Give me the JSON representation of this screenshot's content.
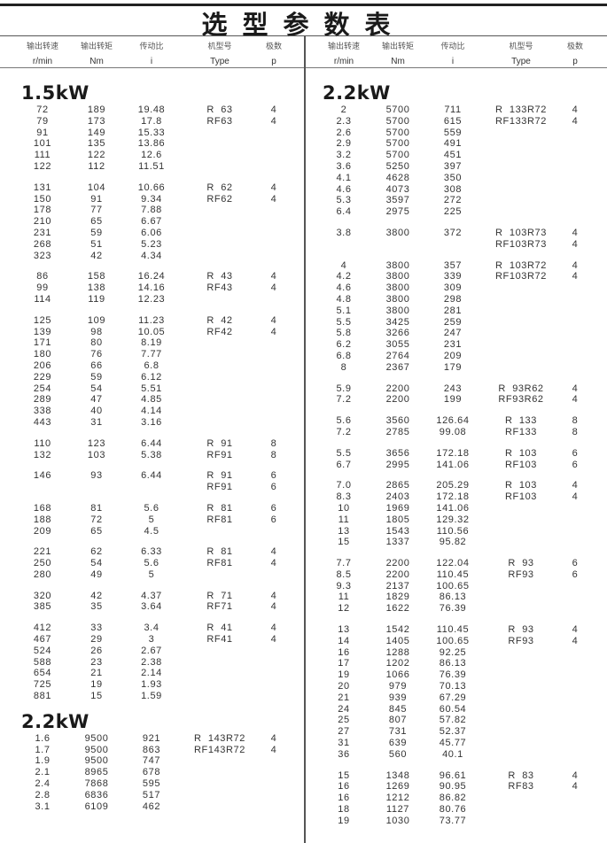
{
  "title": "选型参数表",
  "headers": {
    "cn": [
      "输出转速",
      "输出转矩",
      "传动比",
      "机型号",
      "极数"
    ],
    "en": [
      "r/min",
      "Nm",
      "i",
      "Type",
      "p"
    ]
  },
  "left": [
    {
      "title": "1.5kW",
      "groups": [
        [
          [
            "72",
            "189",
            "19.48",
            "R  63",
            "4"
          ],
          [
            "79",
            "173",
            "17.8",
            "RF63",
            "4"
          ],
          [
            "91",
            "149",
            "15.33",
            "",
            ""
          ],
          [
            "101",
            "135",
            "13.86",
            "",
            ""
          ],
          [
            "111",
            "122",
            "12.6",
            "",
            ""
          ],
          [
            "122",
            "112",
            "11.51",
            "",
            ""
          ]
        ],
        [
          [
            "131",
            "104",
            "10.66",
            "R  62",
            "4"
          ],
          [
            "150",
            "91",
            "9.34",
            "RF62",
            "4"
          ],
          [
            "178",
            "77",
            "7.88",
            "",
            ""
          ],
          [
            "210",
            "65",
            "6.67",
            "",
            ""
          ],
          [
            "231",
            "59",
            "6.06",
            "",
            ""
          ],
          [
            "268",
            "51",
            "5.23",
            "",
            ""
          ],
          [
            "323",
            "42",
            "4.34",
            "",
            ""
          ]
        ],
        [
          [
            "86",
            "158",
            "16.24",
            "R  43",
            "4"
          ],
          [
            "99",
            "138",
            "14.16",
            "RF43",
            "4"
          ],
          [
            "114",
            "119",
            "12.23",
            "",
            ""
          ]
        ],
        [
          [
            "125",
            "109",
            "11.23",
            "R  42",
            "4"
          ],
          [
            "139",
            "98",
            "10.05",
            "RF42",
            "4"
          ],
          [
            "171",
            "80",
            "8.19",
            "",
            ""
          ],
          [
            "180",
            "76",
            "7.77",
            "",
            ""
          ],
          [
            "206",
            "66",
            "6.8",
            "",
            ""
          ],
          [
            "229",
            "59",
            "6.12",
            "",
            ""
          ],
          [
            "254",
            "54",
            "5.51",
            "",
            ""
          ],
          [
            "289",
            "47",
            "4.85",
            "",
            ""
          ],
          [
            "338",
            "40",
            "4.14",
            "",
            ""
          ],
          [
            "443",
            "31",
            "3.16",
            "",
            ""
          ]
        ],
        [
          [
            "110",
            "123",
            "6.44",
            "R  91",
            "8"
          ],
          [
            "132",
            "103",
            "5.38",
            "RF91",
            "8"
          ]
        ],
        [
          [
            "146",
            "93",
            "6.44",
            "R  91",
            "6"
          ],
          [
            "",
            "",
            "",
            "RF91",
            "6"
          ]
        ],
        [
          [
            "168",
            "81",
            "5.6",
            "R  81",
            "6"
          ],
          [
            "188",
            "72",
            "5",
            "RF81",
            "6"
          ],
          [
            "209",
            "65",
            "4.5",
            "",
            ""
          ]
        ],
        [
          [
            "221",
            "62",
            "6.33",
            "R  81",
            "4"
          ],
          [
            "250",
            "54",
            "5.6",
            "RF81",
            "4"
          ],
          [
            "280",
            "49",
            "5",
            "",
            ""
          ]
        ],
        [
          [
            "320",
            "42",
            "4.37",
            "R  71",
            "4"
          ],
          [
            "385",
            "35",
            "3.64",
            "RF71",
            "4"
          ]
        ],
        [
          [
            "412",
            "33",
            "3.4",
            "R  41",
            "4"
          ],
          [
            "467",
            "29",
            "3",
            "RF41",
            "4"
          ],
          [
            "524",
            "26",
            "2.67",
            "",
            ""
          ],
          [
            "588",
            "23",
            "2.38",
            "",
            ""
          ],
          [
            "654",
            "21",
            "2.14",
            "",
            ""
          ],
          [
            "725",
            "19",
            "1.93",
            "",
            ""
          ],
          [
            "881",
            "15",
            "1.59",
            "",
            ""
          ]
        ]
      ]
    },
    {
      "title": "2.2kW",
      "groups": [
        [
          [
            "1.6",
            "9500",
            "921",
            "R  143R72",
            "4"
          ],
          [
            "1.7",
            "9500",
            "863",
            "RF143R72",
            "4"
          ],
          [
            "1.9",
            "9500",
            "747",
            "",
            ""
          ],
          [
            "2.1",
            "8965",
            "678",
            "",
            ""
          ],
          [
            "2.4",
            "7868",
            "595",
            "",
            ""
          ],
          [
            "2.8",
            "6836",
            "517",
            "",
            ""
          ],
          [
            "3.1",
            "6109",
            "462",
            "",
            ""
          ]
        ]
      ]
    }
  ],
  "right": [
    {
      "title": "2.2kW",
      "groups": [
        [
          [
            "2",
            "5700",
            "711",
            "R  133R72",
            "4"
          ],
          [
            "2.3",
            "5700",
            "615",
            "RF133R72",
            "4"
          ],
          [
            "2.6",
            "5700",
            "559",
            "",
            ""
          ],
          [
            "2.9",
            "5700",
            "491",
            "",
            ""
          ],
          [
            "3.2",
            "5700",
            "451",
            "",
            ""
          ],
          [
            "3.6",
            "5250",
            "397",
            "",
            ""
          ],
          [
            "4.1",
            "4628",
            "350",
            "",
            ""
          ],
          [
            "4.6",
            "4073",
            "308",
            "",
            ""
          ],
          [
            "5.3",
            "3597",
            "272",
            "",
            ""
          ],
          [
            "6.4",
            "2975",
            "225",
            "",
            ""
          ]
        ],
        [
          [
            "3.8",
            "3800",
            "372",
            "R  103R73",
            "4"
          ],
          [
            "",
            "",
            "",
            "RF103R73",
            "4"
          ]
        ],
        [
          [
            "4",
            "3800",
            "357",
            "R  103R72",
            "4"
          ],
          [
            "4.2",
            "3800",
            "339",
            "RF103R72",
            "4"
          ],
          [
            "4.6",
            "3800",
            "309",
            "",
            ""
          ],
          [
            "4.8",
            "3800",
            "298",
            "",
            ""
          ],
          [
            "5.1",
            "3800",
            "281",
            "",
            ""
          ],
          [
            "5.5",
            "3425",
            "259",
            "",
            ""
          ],
          [
            "5.8",
            "3266",
            "247",
            "",
            ""
          ],
          [
            "6.2",
            "3055",
            "231",
            "",
            ""
          ],
          [
            "6.8",
            "2764",
            "209",
            "",
            ""
          ],
          [
            "8",
            "2367",
            "179",
            "",
            ""
          ]
        ],
        [
          [
            "5.9",
            "2200",
            "243",
            "R  93R62",
            "4"
          ],
          [
            "7.2",
            "2200",
            "199",
            "RF93R62",
            "4"
          ]
        ],
        [
          [
            "5.6",
            "3560",
            "126.64",
            "R  133",
            "8"
          ],
          [
            "7.2",
            "2785",
            "99.08",
            "RF133",
            "8"
          ]
        ],
        [
          [
            "5.5",
            "3656",
            "172.18",
            "R  103",
            "6"
          ],
          [
            "6.7",
            "2995",
            "141.06",
            "RF103",
            "6"
          ]
        ],
        [
          [
            "7.0",
            "2865",
            "205.29",
            "R  103",
            "4"
          ],
          [
            "8.3",
            "2403",
            "172.18",
            "RF103",
            "4"
          ],
          [
            "10",
            "1969",
            "141.06",
            "",
            ""
          ],
          [
            "11",
            "1805",
            "129.32",
            "",
            ""
          ],
          [
            "13",
            "1543",
            "110.56",
            "",
            ""
          ],
          [
            "15",
            "1337",
            "95.82",
            "",
            ""
          ]
        ],
        [
          [
            "7.7",
            "2200",
            "122.04",
            "R  93",
            "6"
          ],
          [
            "8.5",
            "2200",
            "110.45",
            "RF93",
            "6"
          ],
          [
            "9.3",
            "2137",
            "100.65",
            "",
            ""
          ],
          [
            "11",
            "1829",
            "86.13",
            "",
            ""
          ],
          [
            "12",
            "1622",
            "76.39",
            "",
            ""
          ]
        ],
        [
          [
            "13",
            "1542",
            "110.45",
            "R  93",
            "4"
          ],
          [
            "14",
            "1405",
            "100.65",
            "RF93",
            "4"
          ],
          [
            "16",
            "1288",
            "92.25",
            "",
            ""
          ],
          [
            "17",
            "1202",
            "86.13",
            "",
            ""
          ],
          [
            "19",
            "1066",
            "76.39",
            "",
            ""
          ],
          [
            "20",
            "979",
            "70.13",
            "",
            ""
          ],
          [
            "21",
            "939",
            "67.29",
            "",
            ""
          ],
          [
            "24",
            "845",
            "60.54",
            "",
            ""
          ],
          [
            "25",
            "807",
            "57.82",
            "",
            ""
          ],
          [
            "27",
            "731",
            "52.37",
            "",
            ""
          ],
          [
            "31",
            "639",
            "45.77",
            "",
            ""
          ],
          [
            "36",
            "560",
            "40.1",
            "",
            ""
          ]
        ],
        [
          [
            "15",
            "1348",
            "96.61",
            "R  83",
            "4"
          ],
          [
            "16",
            "1269",
            "90.95",
            "RF83",
            "4"
          ],
          [
            "16",
            "1212",
            "86.82",
            "",
            ""
          ],
          [
            "18",
            "1127",
            "80.76",
            "",
            ""
          ],
          [
            "19",
            "1030",
            "73.77",
            "",
            ""
          ]
        ]
      ]
    }
  ]
}
